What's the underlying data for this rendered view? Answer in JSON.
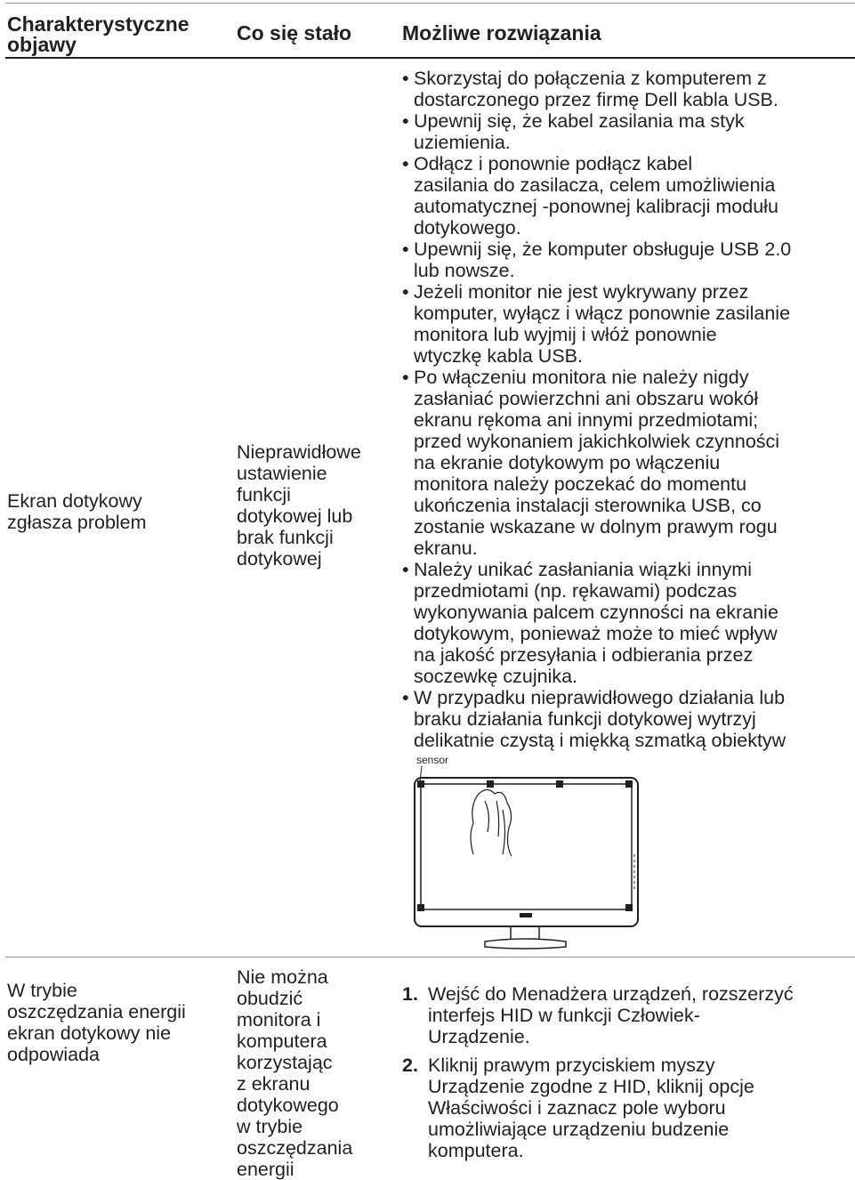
{
  "table": {
    "headers": [
      [
        "Charakterystyczne",
        "objawy"
      ],
      [
        "Co się stało"
      ],
      [
        "Możliwe rozwiązania"
      ]
    ],
    "rows": [
      {
        "symptom": [
          "Ekran dotykowy",
          "zgłasza problem"
        ],
        "cause": [
          "Nieprawidłowe",
          "ustawienie",
          "funkcji",
          "dotykowej lub",
          "brak funkcji",
          "dotykowej"
        ],
        "solutions": [
          [
            "Skorzystaj do połączenia z komputerem z",
            "dostarczonego przez firmę Dell kabla USB."
          ],
          [
            "Upewnij się, że kabel zasilania ma styk",
            "uziemienia."
          ],
          [
            "Odłącz i ponownie podłącz kabel",
            "zasilania do zasilacza, celem umożliwienia",
            "automatycznej -ponownej kalibracji modułu",
            "dotykowego."
          ],
          [
            "Upewnij się, że komputer obsługuje USB 2.0",
            "lub nowsze."
          ],
          [
            "Jeżeli monitor nie jest wykrywany przez",
            "komputer, wyłącz i włącz ponownie zasilanie",
            "monitora lub wyjmij i włóż ponownie",
            "wtyczkę kabla USB."
          ],
          [
            "Po włączeniu monitora nie należy nigdy",
            "zasłaniać powierzchni ani obszaru wokół",
            "ekranu rękoma ani innymi przedmiotami;",
            "przed wykonaniem jakichkolwiek czynności",
            "na ekranie dotykowym po włączeniu",
            "monitora należy poczekać do momentu",
            "ukończenia instalacji sterownika USB, co",
            "zostanie wskazane w dolnym prawym rogu",
            "ekranu."
          ],
          [
            "Należy unikać zasłaniania wiązki innymi",
            "przedmiotami (np. rękawami) podczas",
            "wykonywania palcem czynności na ekranie",
            "dotykowym, ponieważ może to mieć wpływ",
            "na jakość przesyłania i odbierania przez",
            "soczewkę czujnika."
          ],
          [
            "W przypadku nieprawidłowego działania lub",
            "braku działania funkcji dotykowej wytrzyj",
            "delikatnie czystą i miękką szmatką obiektyw"
          ]
        ],
        "figure_label": "sensor"
      },
      {
        "symptom": [
          "W trybie",
          "oszczędzania energii",
          "ekran dotykowy nie",
          "odpowiada"
        ],
        "cause": [
          "Nie można",
          "obudzić",
          "monitora i",
          "komputera",
          "korzystając",
          "z ekranu",
          "dotykowego",
          "w trybie",
          "oszczędzania",
          "energii"
        ],
        "steps": [
          {
            "number": "1.",
            "lines": [
              "Wejść do Menadżera urządzeń, rozszerzyć",
              "interfejs HID w funkcji Człowiek-",
              "Urządzenie."
            ]
          },
          {
            "number": "2.",
            "lines": [
              "Kliknij prawym przyciskiem myszy",
              "Urządzenie zgodne z HID, kliknij opcje",
              "Właściwości i zaznacz pole wyboru",
              "umożliwiające urządzeniu budzenie",
              "komputera."
            ]
          }
        ]
      }
    ]
  }
}
